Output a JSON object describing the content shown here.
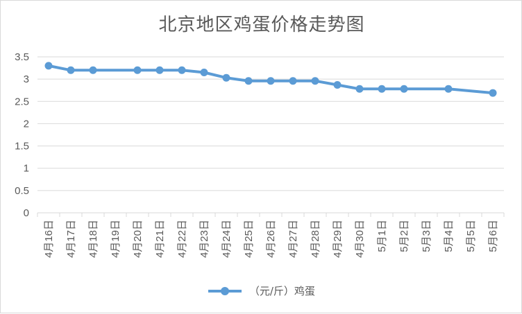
{
  "chart_data": {
    "type": "line",
    "title": "北京地区鸡蛋价格走势图",
    "categories": [
      "4月16日",
      "4月17日",
      "4月18日",
      "4月19日",
      "4月20日",
      "4月21日",
      "4月22日",
      "4月23日",
      "4月24日",
      "4月25日",
      "4月26日",
      "4月27日",
      "4月28日",
      "4月29日",
      "4月30日",
      "5月1日",
      "5月2日",
      "5月3日",
      "5月4日",
      "5月5日",
      "5月6日"
    ],
    "series": [
      {
        "name": "（元/斤）鸡蛋",
        "values": [
          3.3,
          3.2,
          3.2,
          null,
          3.2,
          3.2,
          3.2,
          3.15,
          3.03,
          2.96,
          2.96,
          2.96,
          2.96,
          2.87,
          2.78,
          2.78,
          2.78,
          null,
          2.78,
          null,
          2.69
        ],
        "color": "#5b9bd5"
      }
    ],
    "yticks": [
      "0",
      "0.5",
      "1",
      "1.5",
      "2",
      "2.5",
      "3",
      "3.5"
    ],
    "ylim": [
      0,
      3.5
    ],
    "xlabel": "",
    "ylabel": "",
    "grid": true,
    "legend": "bottom"
  }
}
